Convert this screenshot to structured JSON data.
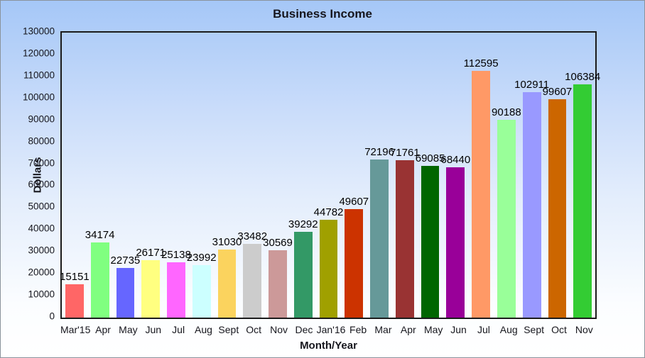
{
  "window": {
    "border_color": "#8a939c",
    "background_top": "#a5c7f7",
    "background_bottom": "#ffffff"
  },
  "colors": {
    "title_text": "#16161d",
    "tick_text": "#16161d",
    "value_label_text": "#000000",
    "plot_border": "#1b1b1b"
  },
  "chart_data": {
    "type": "bar",
    "title": "Business Income",
    "xlabel": "Month/Year",
    "ylabel": "Dollars",
    "ylim": [
      0,
      130000
    ],
    "ytick_step": 10000,
    "grid": false,
    "legend": "none",
    "value_labels_shown": true,
    "categories": [
      "Mar'15",
      "Apr",
      "May",
      "Jun",
      "Jul",
      "Aug",
      "Sept",
      "Oct",
      "Nov",
      "Dec",
      "Jan'16",
      "Feb",
      "Mar",
      "Apr",
      "May",
      "Jun",
      "Jul",
      "Aug",
      "Sept",
      "Oct",
      "Nov"
    ],
    "values": [
      15151,
      34174,
      22735,
      26171,
      25138,
      23992,
      31030,
      33482,
      30569,
      39292,
      44782,
      49607,
      72196,
      71761,
      69085,
      68440,
      112595,
      90188,
      102911,
      99607,
      106384
    ],
    "bar_colors": [
      "#FF6666",
      "#80FF80",
      "#6666FF",
      "#FFFF80",
      "#FF66FF",
      "#CCFFFF",
      "#FBD35E",
      "#CCCCCC",
      "#CC9999",
      "#339966",
      "#A0A000",
      "#CC3300",
      "#669999",
      "#993333",
      "#006600",
      "#990099",
      "#FF9966",
      "#99FF99",
      "#9999FF",
      "#CC6600",
      "#33CC33"
    ]
  }
}
